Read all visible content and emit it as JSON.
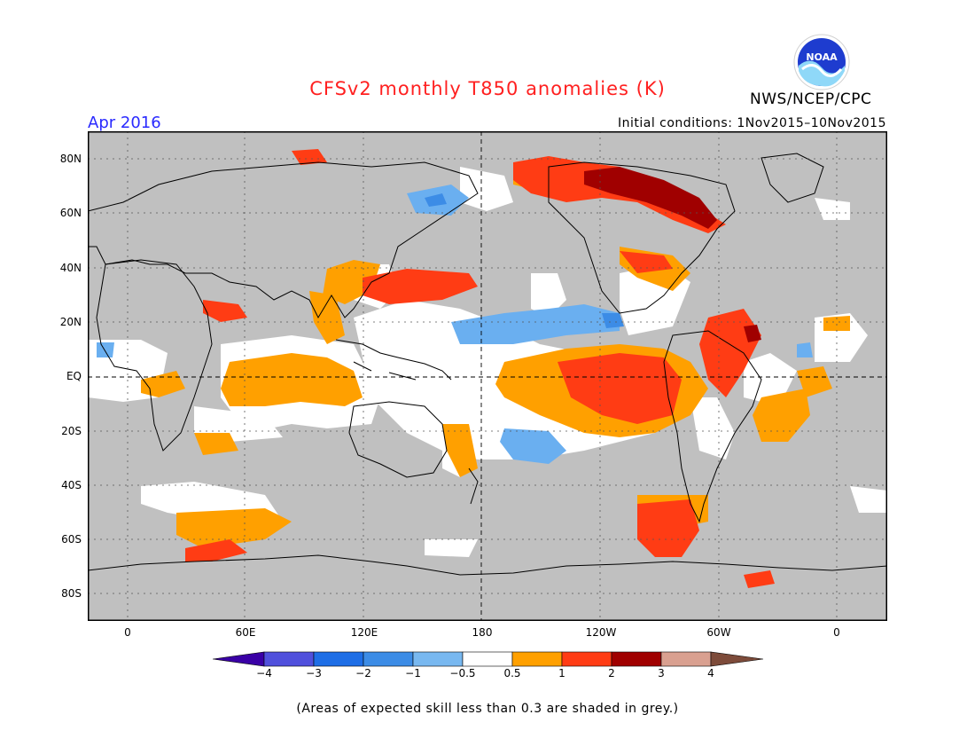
{
  "title": "CFSv2 monthly T850 anomalies (K)",
  "period": "Apr 2016",
  "initial_conditions": "Initial conditions: 1Nov2015–10Nov2015",
  "agency": "NWS/NCEP/CPC",
  "logo_text": "NOAA",
  "footnote": "(Areas of expected skill less than 0.3 are shaded in grey.)",
  "map": {
    "lat_labels": [
      "80N",
      "60N",
      "40N",
      "20N",
      "EQ",
      "20S",
      "40S",
      "60S",
      "80S"
    ],
    "lon_labels": [
      "0",
      "60E",
      "120E",
      "180",
      "120W",
      "60W",
      "0"
    ],
    "colors": {
      "grey_low_skill": "#c0c0c0",
      "neutral": "#ffffff",
      "warm_0_5_1": "#ffa000",
      "warm_1_2": "#ff3c14",
      "warm_2_3": "#c00000",
      "cool_m1_m0_5": "#6aaff0",
      "cool_m2_m1": "#3c8ce6"
    }
  },
  "colorbar": {
    "labels": [
      "−4",
      "−3",
      "−2",
      "−1",
      "−0.5",
      "0.5",
      "1",
      "2",
      "3",
      "4"
    ],
    "colors": [
      "#3a00a6",
      "#5050dc",
      "#1e6ee6",
      "#3c8ce6",
      "#78b8f0",
      "#ffffff",
      "#ffa000",
      "#ff3c14",
      "#a00000",
      "#d9a090",
      "#7d4b3a",
      "#6e3c28"
    ]
  }
}
